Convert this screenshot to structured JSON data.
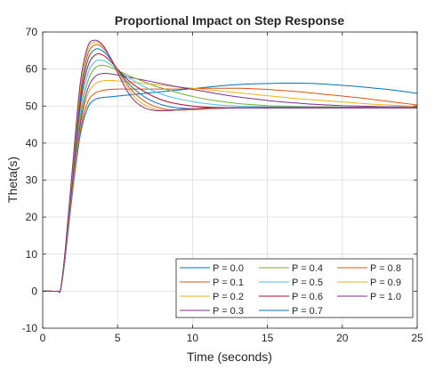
{
  "chart_data": {
    "type": "line",
    "title": "Proportional Impact on Step Response",
    "xlabel": "Time (seconds)",
    "ylabel": "Theta(s)",
    "xlim": [
      0,
      25
    ],
    "ylim": [
      -10,
      70
    ],
    "xticks": [
      "0",
      "5",
      "10",
      "15",
      "20",
      "25"
    ],
    "yticks": [
      "-10",
      "0",
      "10",
      "20",
      "30",
      "40",
      "50",
      "60",
      "70"
    ],
    "grid": true,
    "legend_position": "bottom-right",
    "legend_columns": 3,
    "x": [
      0,
      0.5,
      1,
      1.2,
      1.5,
      2,
      2.5,
      3,
      3.5,
      4,
      4.5,
      5,
      5.5,
      6,
      6.5,
      7,
      7.5,
      8,
      8.5,
      9,
      10,
      11,
      12,
      13,
      14,
      15,
      16,
      17,
      18,
      19,
      20,
      21,
      22,
      23,
      24,
      25
    ],
    "series": [
      {
        "name": "P = 0.0",
        "color": "#0072bd",
        "values": [
          0,
          0,
          0,
          0.6,
          9,
          27,
          42,
          49.5,
          51.8,
          52.3,
          52.5,
          52.7,
          52.9,
          53.1,
          53.3,
          53.5,
          53.7,
          53.9,
          54.1,
          54.3,
          54.7,
          55.1,
          55.5,
          55.8,
          56,
          56.1,
          56.2,
          56.2,
          56.1,
          55.9,
          55.6,
          55.3,
          54.9,
          54.5,
          54,
          53.4
        ]
      },
      {
        "name": "P = 0.1",
        "color": "#d95319",
        "values": [
          0,
          0,
          0,
          0.6,
          9,
          27,
          43,
          51,
          53.5,
          54.2,
          54.5,
          54.6,
          54.6,
          54.6,
          54.6,
          54.6,
          54.6,
          54.6,
          54.6,
          54.6,
          54.7,
          54.8,
          54.8,
          54.8,
          54.7,
          54.5,
          54.2,
          53.9,
          53.5,
          53.1,
          52.7,
          52.3,
          51.8,
          51.3,
          50.8,
          50.3
        ]
      },
      {
        "name": "P = 0.2",
        "color": "#edb120",
        "values": [
          0,
          0,
          0,
          0.6,
          9,
          27.5,
          44,
          53,
          56,
          56.8,
          56.9,
          56.8,
          56.6,
          56.4,
          56.2,
          56,
          55.8,
          55.6,
          55.4,
          55.2,
          54.8,
          54.4,
          54,
          53.6,
          53.2,
          52.8,
          52.4,
          52,
          51.7,
          51.4,
          51.1,
          50.8,
          50.5,
          50.3,
          50.1,
          49.9
        ]
      },
      {
        "name": "P = 0.3",
        "color": "#7e2f8e",
        "values": [
          0,
          0,
          0,
          0.6,
          9,
          28,
          45,
          54.5,
          58,
          58.8,
          58.7,
          58.4,
          58,
          57.6,
          57.2,
          56.8,
          56.4,
          56,
          55.6,
          55.2,
          54.5,
          53.8,
          53.1,
          52.5,
          52,
          51.5,
          51.1,
          50.8,
          50.5,
          50.3,
          50.1,
          50,
          49.9,
          49.8,
          49.8,
          49.7
        ]
      },
      {
        "name": "P = 0.4",
        "color": "#77ac30",
        "values": [
          0,
          0,
          0,
          0.6,
          9.5,
          28.5,
          46.5,
          56.5,
          60.3,
          61,
          60.5,
          59.6,
          58.7,
          57.8,
          57,
          56.2,
          55.4,
          54.8,
          54.2,
          53.6,
          52.6,
          51.8,
          51.2,
          50.7,
          50.4,
          50.1,
          50,
          49.9,
          49.8,
          49.8,
          49.7,
          49.7,
          49.7,
          49.7,
          49.7,
          49.7
        ]
      },
      {
        "name": "P = 0.5",
        "color": "#4dbeee",
        "values": [
          0,
          0,
          0,
          0.6,
          9.5,
          29,
          48,
          58.5,
          62,
          62.3,
          61.3,
          59.8,
          58.3,
          57,
          55.8,
          54.8,
          53.9,
          53.1,
          52.5,
          52,
          51.2,
          50.6,
          50.2,
          50,
          49.9,
          49.8,
          49.8,
          49.8,
          49.7,
          49.7,
          49.7,
          49.7,
          49.7,
          49.7,
          49.7,
          49.7
        ]
      },
      {
        "name": "P = 0.6",
        "color": "#a2142f",
        "values": [
          0,
          0,
          0,
          0.6,
          10,
          30,
          50,
          60.5,
          63.8,
          63.8,
          62.2,
          60,
          57.8,
          56,
          54.6,
          53.4,
          52.4,
          51.6,
          51,
          50.6,
          50,
          49.7,
          49.6,
          49.6,
          49.6,
          49.6,
          49.6,
          49.6,
          49.6,
          49.6,
          49.6,
          49.6,
          49.6,
          49.6,
          49.6,
          49.6
        ]
      },
      {
        "name": "P = 0.7",
        "color": "#0072bd",
        "values": [
          0,
          0,
          0,
          0.6,
          10,
          31,
          51.5,
          62.3,
          65.3,
          64.9,
          62.8,
          60,
          57.2,
          55,
          53.3,
          52,
          51,
          50.3,
          49.8,
          49.5,
          49.3,
          49.3,
          49.4,
          49.5,
          49.5,
          49.5,
          49.5,
          49.5,
          49.5,
          49.5,
          49.5,
          49.5,
          49.5,
          49.5,
          49.5,
          49.5
        ]
      },
      {
        "name": "P = 0.8",
        "color": "#d95319",
        "values": [
          0,
          0,
          0,
          0.6,
          10.5,
          32,
          53,
          63.8,
          66.5,
          65.8,
          63.2,
          59.8,
          56.6,
          54,
          52.2,
          50.8,
          49.9,
          49.3,
          49,
          48.9,
          49,
          49.2,
          49.4,
          49.5,
          49.5,
          49.5,
          49.5,
          49.5,
          49.5,
          49.5,
          49.5,
          49.5,
          49.5,
          49.5,
          49.5,
          49.5
        ]
      },
      {
        "name": "P = 0.9",
        "color": "#edb120",
        "values": [
          0,
          0,
          0,
          0.6,
          10.5,
          33,
          54.5,
          65,
          67.3,
          66.3,
          63.3,
          59.4,
          55.8,
          53,
          51.1,
          49.9,
          49.2,
          48.9,
          48.8,
          48.9,
          49.2,
          49.4,
          49.5,
          49.5,
          49.5,
          49.5,
          49.5,
          49.5,
          49.5,
          49.5,
          49.5,
          49.5,
          49.5,
          49.5,
          49.5,
          49.5
        ]
      },
      {
        "name": "P = 1.0",
        "color": "#7e2f8e",
        "values": [
          0,
          0,
          0,
          0.6,
          11,
          34,
          56,
          66,
          67.8,
          66.5,
          63.2,
          59,
          55,
          52,
          50.2,
          49.2,
          48.8,
          48.7,
          48.8,
          49,
          49.3,
          49.5,
          49.5,
          49.5,
          49.5,
          49.5,
          49.5,
          49.5,
          49.5,
          49.5,
          49.5,
          49.5,
          49.5,
          49.5,
          49.5,
          49.5
        ]
      }
    ]
  }
}
